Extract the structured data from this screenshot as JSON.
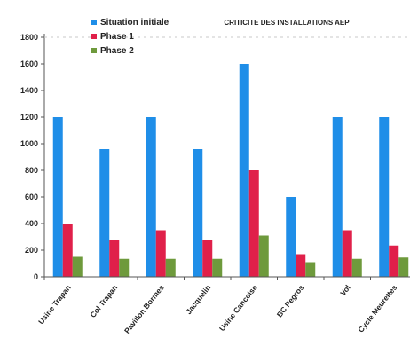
{
  "chart_data": {
    "type": "bar",
    "title": "CRITICITE DES INSTALLATIONS AEP",
    "xlabel": "",
    "ylabel": "",
    "ylim": [
      0,
      1800
    ],
    "yticks": [
      0,
      200,
      400,
      600,
      800,
      1000,
      1200,
      1400,
      1600,
      1800
    ],
    "grid": false,
    "legend_position": "top-left",
    "categories": [
      "Usine Trapan",
      "Col Trapan",
      "Pavillon Bormes",
      "Jacquelin",
      "Usine Cancoise",
      "BC Pegros",
      "Vol",
      "Cycle Meurettes"
    ],
    "series": [
      {
        "name": "Situation initiale",
        "color": "#1f8ee8",
        "values": [
          1200,
          960,
          1200,
          960,
          1600,
          600,
          1200,
          1200
        ]
      },
      {
        "name": "Phase 1",
        "color": "#e0204a",
        "values": [
          400,
          280,
          350,
          280,
          800,
          170,
          350,
          235
        ]
      },
      {
        "name": "Phase 2",
        "color": "#6e9a3c",
        "values": [
          150,
          135,
          135,
          135,
          310,
          110,
          135,
          145
        ]
      }
    ]
  }
}
